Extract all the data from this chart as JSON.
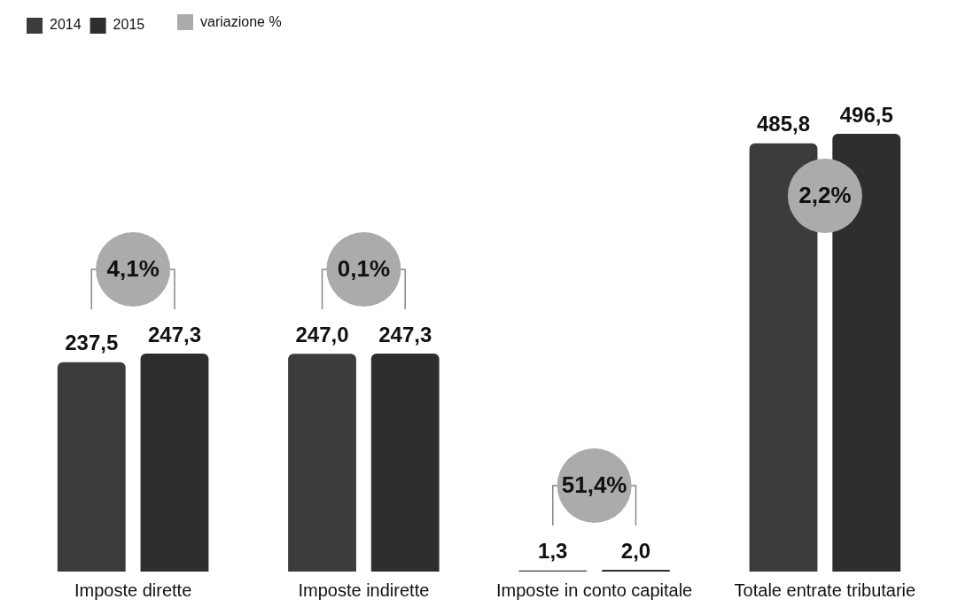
{
  "chart_data": {
    "type": "bar",
    "categories": [
      "Imposte dirette",
      "Imposte indirette",
      "Imposte in conto capitale",
      "Totale entrate tributarie"
    ],
    "series": [
      {
        "name": "2014",
        "color": "#3c3c3c",
        "values": [
          237.5,
          247.0,
          1.3,
          485.8
        ],
        "value_labels": [
          "237,5",
          "247,0",
          "1,3",
          "485,8"
        ]
      },
      {
        "name": "2015",
        "color": "#2e2e2e",
        "values": [
          247.3,
          247.3,
          2.0,
          496.5
        ],
        "value_labels": [
          "247,3",
          "247,3",
          "2,0",
          "496,5"
        ]
      }
    ],
    "annotations": [
      "4,1%",
      "0,1%",
      "51,4%",
      "2,2%",
      "variazione %"
    ],
    "legend": "top left",
    "grid": false
  }
}
